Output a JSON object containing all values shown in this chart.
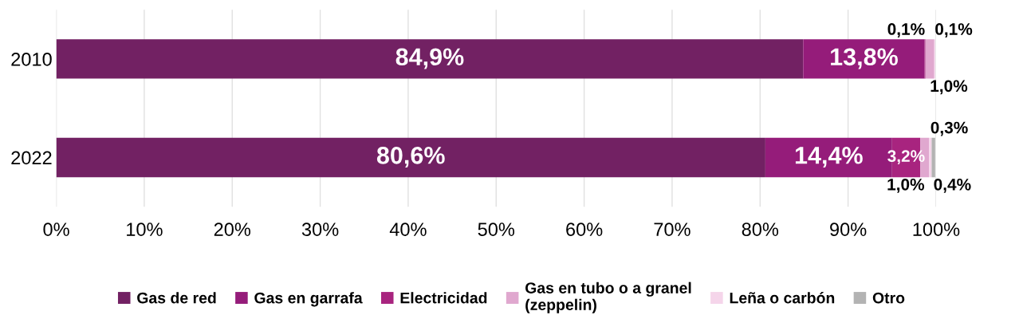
{
  "chart_data": {
    "type": "bar",
    "orientation": "horizontal",
    "stacked": true,
    "categories": [
      "2010",
      "2022"
    ],
    "series": [
      {
        "name": "Gas de red",
        "color": "#722163",
        "values": [
          84.9,
          80.6
        ],
        "value_labels": [
          "84,9%",
          "80,6%"
        ]
      },
      {
        "name": "Gas en garrafa",
        "color": "#951c7a",
        "values": [
          13.8,
          14.4
        ],
        "value_labels": [
          "13,8%",
          "14,4%"
        ]
      },
      {
        "name": "Electricidad",
        "color": "#a8247f",
        "values": [
          0.1,
          3.2
        ],
        "value_labels": [
          "0,1%",
          "3,2%"
        ]
      },
      {
        "name": "Gas en tubo o a granel\n(zeppelin)",
        "color": "#e0a8cf",
        "values": [
          1.0,
          1.0
        ],
        "value_labels": [
          "1,0%",
          "1,0%"
        ]
      },
      {
        "name": "Leña o carbón",
        "color": "#f5d5ea",
        "values": [
          0.1,
          0.3
        ],
        "value_labels": [
          "0,1%",
          "0,3%"
        ]
      },
      {
        "name": "Otro",
        "color": "#b3b3b3",
        "values": [
          null,
          0.4
        ],
        "value_labels": [
          null,
          "0,4%"
        ]
      }
    ],
    "xlim": [
      0,
      100
    ],
    "xticks": [
      {
        "value": 0,
        "label": "0%"
      },
      {
        "value": 10,
        "label": "10%"
      },
      {
        "value": 20,
        "label": "20%"
      },
      {
        "value": 30,
        "label": "30%"
      },
      {
        "value": 40,
        "label": "40%"
      },
      {
        "value": 50,
        "label": "50%"
      },
      {
        "value": 60,
        "label": "60%"
      },
      {
        "value": 70,
        "label": "70%"
      },
      {
        "value": 80,
        "label": "80%"
      },
      {
        "value": 90,
        "label": "90%"
      },
      {
        "value": 100,
        "label": "100%"
      }
    ],
    "grid": "x",
    "legend": "bottom"
  }
}
